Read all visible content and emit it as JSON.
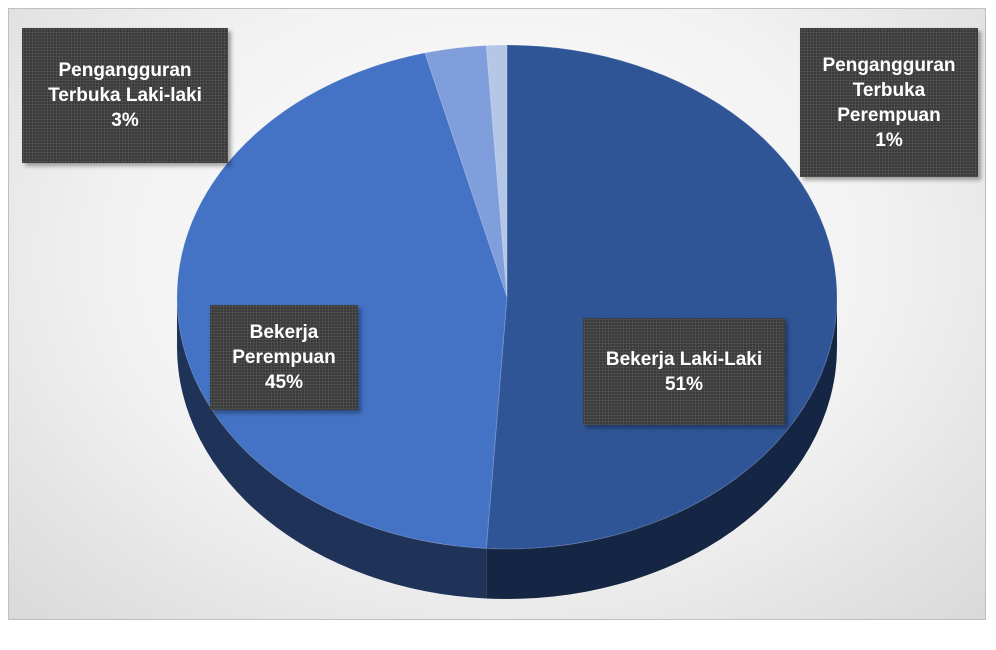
{
  "chart_data": {
    "type": "pie3d",
    "categories": [
      "Bekerja Laki-Laki",
      "Bekerja Perempuan",
      "Pengangguran Terbuka Laki-laki",
      "Pengangguran Terbuka Perempuan"
    ],
    "values": [
      51,
      45,
      3,
      1
    ],
    "value_labels": [
      "51%",
      "45%",
      "3%",
      "1%"
    ],
    "colors": [
      "#2f5597",
      "#4472c4",
      "#7f9edb",
      "#b4c7e7"
    ]
  }
}
